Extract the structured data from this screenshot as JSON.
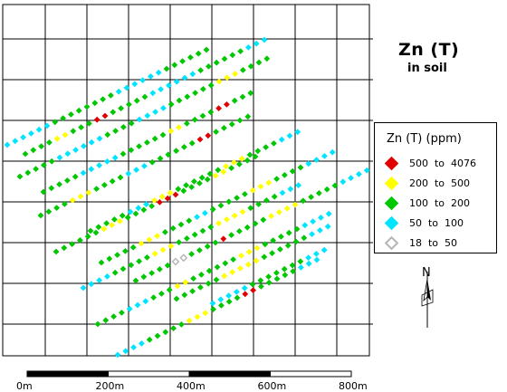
{
  "title": "Zn (T)",
  "subtitle": "in soil",
  "legend": {
    "title": "Zn (T) (ppm)",
    "items": [
      {
        "label": "500  to  4076",
        "color": "#e00000",
        "hollow": false
      },
      {
        "label": "200  to  500",
        "color": "#ffff00",
        "hollow": false
      },
      {
        "label": "100  to  200",
        "color": "#00c800",
        "hollow": false
      },
      {
        "label": "50  to  100",
        "color": "#00e5ff",
        "hollow": false
      },
      {
        "label": "18  to  50",
        "color": "#b4b4b4",
        "hollow": true
      }
    ]
  },
  "north_label": "N",
  "scale_bar": {
    "labels": [
      "0m",
      "200m",
      "400m",
      "600m",
      "800m"
    ]
  },
  "colors": {
    "red": "#e00000",
    "yellow": "#ffff00",
    "green": "#00c800",
    "cyan": "#00e5ff",
    "grey": "#b4b4b4"
  },
  "traverses": [
    {
      "segments": [
        [
          "c",
          6
        ],
        [
          "g",
          8
        ],
        [
          "c",
          6
        ],
        [
          "g",
          6
        ]
      ]
    },
    {
      "segments": [
        [
          "g",
          4
        ],
        [
          "y",
          2
        ],
        [
          "g",
          3
        ],
        [
          "r",
          2
        ],
        [
          "g",
          5
        ],
        [
          "c",
          6
        ],
        [
          "g",
          6
        ],
        [
          "c",
          3
        ]
      ]
    },
    {
      "segments": [
        [
          "g",
          5
        ],
        [
          "c",
          6
        ],
        [
          "g",
          4
        ],
        [
          "c",
          4
        ],
        [
          "g",
          6
        ],
        [
          "y",
          3
        ],
        [
          "g",
          4
        ]
      ]
    },
    {
      "segments": [
        [
          "g",
          4
        ],
        [
          "y",
          3
        ],
        [
          "g",
          4
        ],
        [
          "c",
          3
        ],
        [
          "g",
          6
        ],
        [
          "r",
          2
        ],
        [
          "g",
          5
        ]
      ]
    },
    {
      "segments": [
        [
          "g",
          5
        ],
        [
          "c",
          5
        ],
        [
          "g",
          6
        ],
        [
          "y",
          2
        ],
        [
          "g",
          4
        ],
        [
          "r",
          2
        ],
        [
          "g",
          3
        ]
      ]
    },
    {
      "segments": [
        [
          "g",
          6
        ],
        [
          "y",
          3
        ],
        [
          "g",
          4
        ],
        [
          "r",
          3
        ],
        [
          "g",
          4
        ],
        [
          "y",
          2
        ],
        [
          "g",
          4
        ]
      ]
    },
    {
      "segments": [
        [
          "g",
          5
        ],
        [
          "c",
          3
        ],
        [
          "y",
          3
        ],
        [
          "g",
          6
        ],
        [
          "y",
          3
        ],
        [
          "g",
          4
        ],
        [
          "c",
          3
        ]
      ]
    },
    {
      "segments": [
        [
          "c",
          4
        ],
        [
          "g",
          5
        ],
        [
          "y",
          3
        ],
        [
          "g",
          5
        ],
        [
          "y",
          4
        ],
        [
          "g",
          4
        ],
        [
          "c",
          3
        ]
      ]
    },
    {
      "segments": [
        [
          "g",
          5
        ],
        [
          "y",
          3
        ],
        [
          "g",
          4
        ],
        [
          "c",
          2
        ],
        [
          "g",
          5
        ],
        [
          "y",
          3
        ],
        [
          "g",
          4
        ],
        [
          "c",
          4
        ]
      ]
    },
    {
      "segments": [
        [
          "g",
          4
        ],
        [
          "c",
          3
        ],
        [
          "g",
          3
        ],
        [
          "y",
          2
        ],
        [
          "g",
          6
        ],
        [
          "y",
          3
        ],
        [
          "g",
          5
        ],
        [
          "c",
          4
        ]
      ]
    },
    {
      "segments": [
        [
          "g",
          5
        ],
        [
          "d",
          2
        ],
        [
          "g",
          4
        ],
        [
          "r",
          1
        ],
        [
          "g",
          5
        ],
        [
          "y",
          4
        ],
        [
          "g",
          5
        ],
        [
          "c",
          4
        ]
      ]
    },
    {
      "segments": [
        [
          "c",
          4
        ],
        [
          "g",
          5
        ],
        [
          "y",
          3
        ],
        [
          "g",
          4
        ],
        [
          "r",
          2
        ],
        [
          "g",
          5
        ],
        [
          "c",
          3
        ]
      ]
    },
    {
      "segments": [
        [
          "g",
          6
        ],
        [
          "y",
          5
        ],
        [
          "g",
          6
        ],
        [
          "c",
          3
        ]
      ]
    },
    {
      "segments": [
        [
          "c",
          5
        ],
        [
          "g",
          7
        ],
        [
          "c",
          3
        ]
      ]
    }
  ]
}
